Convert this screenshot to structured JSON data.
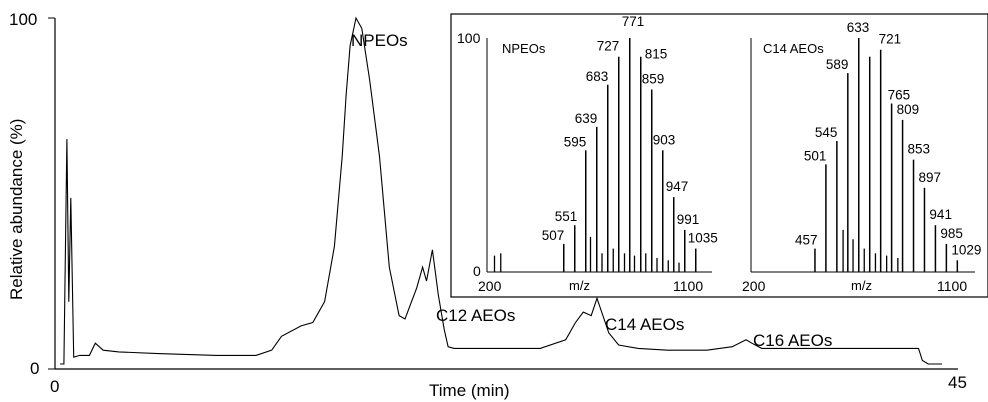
{
  "chart_data": [
    {
      "type": "line",
      "title": "",
      "xlabel": "Time (min)",
      "ylabel": "Relative abundance (%)",
      "xlim": [
        0,
        45
      ],
      "ylim": [
        0,
        100
      ],
      "x_ticks": [
        "0",
        "45"
      ],
      "y_ticks": [
        "0",
        "100"
      ],
      "grid": false,
      "series": [
        {
          "x": [
            0,
            0.2,
            0.35,
            0.45,
            0.55,
            0.7,
            1.0,
            1.5,
            1.8,
            2.2,
            3,
            5,
            8,
            10,
            10.8,
            11.3,
            12.3,
            12.9,
            13.5,
            14.0,
            14.4,
            14.6,
            14.8,
            15.1,
            15.4,
            15.8,
            16.3,
            16.8,
            17.3,
            17.6,
            18.2,
            18.5,
            18.7,
            19.0,
            19.3,
            19.6,
            19.8,
            20.1,
            20.6,
            21.5,
            22.5,
            23.5,
            24.5,
            25.8,
            26.3,
            26.7,
            27.1,
            27.4,
            28.0,
            28.5,
            29.5,
            31,
            33,
            34.3,
            35,
            35.3,
            35.8,
            36.5,
            38,
            40,
            42,
            43.8,
            44,
            44.3,
            45
          ],
          "y": [
            0,
            0,
            65,
            18,
            48,
            2,
            2.5,
            2.5,
            6,
            4,
            3.5,
            3,
            2.5,
            2.5,
            4,
            8,
            11,
            12,
            18,
            34,
            60,
            78,
            92,
            100,
            97,
            82,
            60,
            28,
            14,
            13,
            22,
            28,
            24,
            33,
            20,
            10,
            5,
            4.5,
            4.5,
            4.5,
            4.5,
            4.5,
            4.5,
            7,
            12,
            15,
            14,
            19,
            9,
            5.5,
            4.5,
            4,
            4,
            5,
            7,
            6,
            4.5,
            4.5,
            4.5,
            4.5,
            4.5,
            4.5,
            1,
            0,
            0
          ]
        }
      ],
      "annotations": [
        {
          "text": "NPEOs",
          "x": 15.5,
          "y": 100
        },
        {
          "text": "C12 AEOs",
          "x": 19.5,
          "y": 22
        },
        {
          "text": "C14 AEOs",
          "x": 27.7,
          "y": 16
        },
        {
          "text": "C16 AEOs",
          "x": 35.5,
          "y": 8
        }
      ]
    },
    {
      "type": "bar",
      "title": "NPEOs",
      "xlabel": "m/z",
      "ylabel": "",
      "xlim": [
        200,
        1100
      ],
      "ylim": [
        0,
        100
      ],
      "x_ticks": [
        "200",
        "1100"
      ],
      "y_ticks": [
        "0",
        "100"
      ],
      "labeled_peaks": [
        {
          "mz": 507,
          "value": 12
        },
        {
          "mz": 551,
          "value": 20
        },
        {
          "mz": 595,
          "value": 52
        },
        {
          "mz": 639,
          "value": 62
        },
        {
          "mz": 683,
          "value": 80
        },
        {
          "mz": 727,
          "value": 92
        },
        {
          "mz": 771,
          "value": 100
        },
        {
          "mz": 815,
          "value": 92
        },
        {
          "mz": 859,
          "value": 78
        },
        {
          "mz": 903,
          "value": 52
        },
        {
          "mz": 947,
          "value": 32
        },
        {
          "mz": 991,
          "value": 18
        },
        {
          "mz": 1035,
          "value": 10
        }
      ],
      "minor_peaks": [
        {
          "mz": 230,
          "value": 7
        },
        {
          "mz": 255,
          "value": 8
        },
        {
          "mz": 614,
          "value": 15
        },
        {
          "mz": 660,
          "value": 8
        },
        {
          "mz": 705,
          "value": 10
        },
        {
          "mz": 750,
          "value": 8
        },
        {
          "mz": 790,
          "value": 7
        },
        {
          "mz": 835,
          "value": 8
        },
        {
          "mz": 880,
          "value": 6
        },
        {
          "mz": 925,
          "value": 5
        },
        {
          "mz": 968,
          "value": 4
        }
      ]
    },
    {
      "type": "bar",
      "title": "C14 AEOs",
      "xlabel": "m/z",
      "ylabel": "",
      "xlim": [
        200,
        1100
      ],
      "ylim": [
        0,
        100
      ],
      "x_ticks": [
        "200",
        "1100"
      ],
      "y_ticks": [],
      "labeled_peaks": [
        {
          "mz": 457,
          "value": 10
        },
        {
          "mz": 501,
          "value": 46
        },
        {
          "mz": 545,
          "value": 56
        },
        {
          "mz": 589,
          "value": 85
        },
        {
          "mz": 633,
          "value": 100
        },
        {
          "mz": 677,
          "value": 92
        },
        {
          "mz": 721,
          "value": 95
        },
        {
          "mz": 765,
          "value": 72
        },
        {
          "mz": 809,
          "value": 65
        },
        {
          "mz": 853,
          "value": 48
        },
        {
          "mz": 897,
          "value": 36
        },
        {
          "mz": 941,
          "value": 20
        },
        {
          "mz": 985,
          "value": 12
        },
        {
          "mz": 1029,
          "value": 5
        }
      ],
      "minor_peaks": [
        {
          "mz": 570,
          "value": 18
        },
        {
          "mz": 610,
          "value": 14
        },
        {
          "mz": 655,
          "value": 10
        },
        {
          "mz": 700,
          "value": 8
        },
        {
          "mz": 745,
          "value": 7
        },
        {
          "mz": 790,
          "value": 6
        }
      ]
    }
  ]
}
